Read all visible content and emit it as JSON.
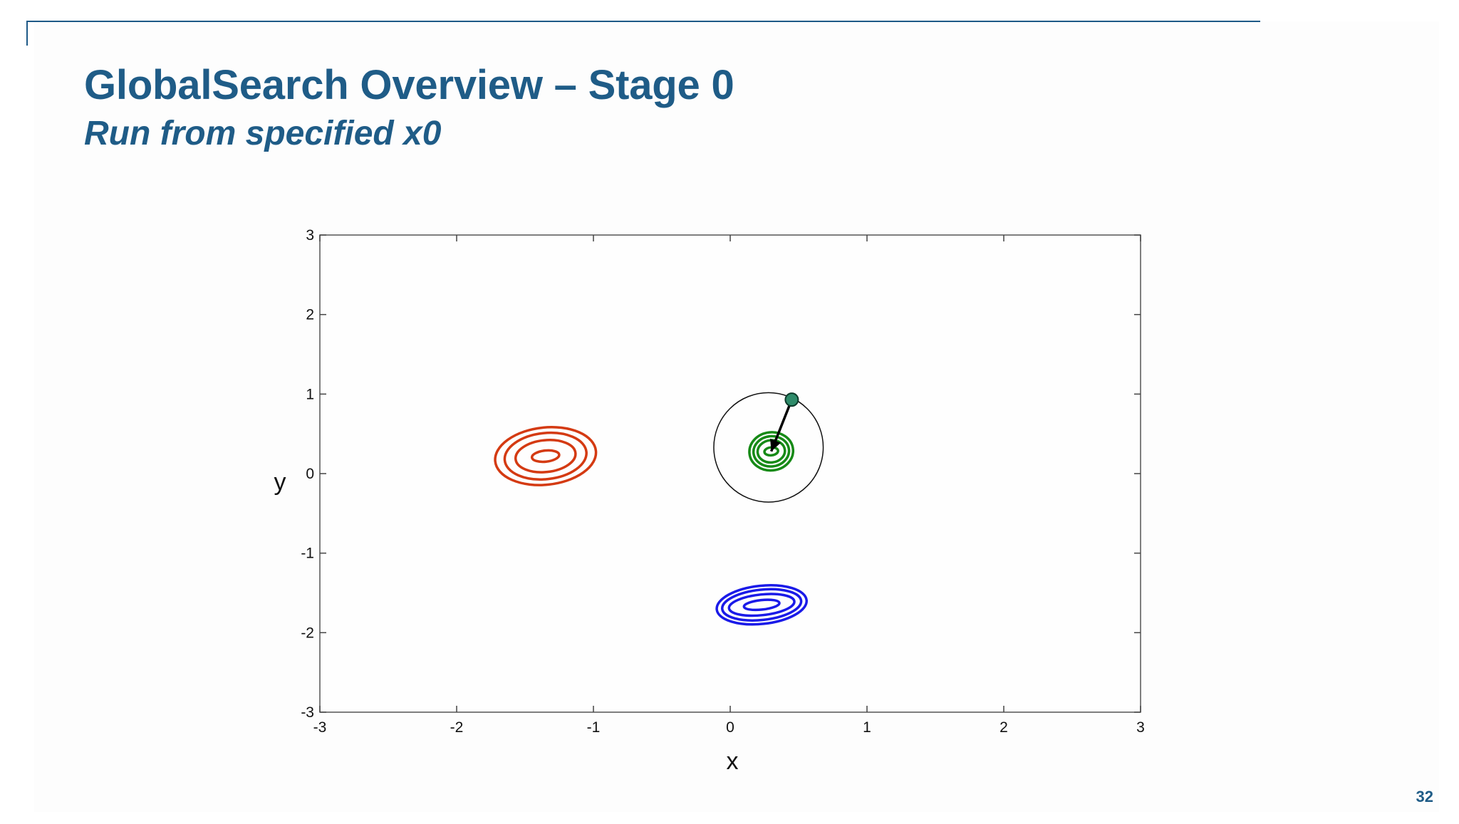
{
  "slide": {
    "title": "GlobalSearch Overview – Stage 0",
    "subtitle": "Run from specified x0",
    "page_number": "32",
    "accent_color": "#1f5c87"
  },
  "chart_data": {
    "type": "contour",
    "title": "",
    "xlabel": "x",
    "ylabel": "y",
    "xlim": [
      -3,
      3
    ],
    "ylim": [
      -3,
      3
    ],
    "xticks": [
      -3,
      -2,
      -1,
      0,
      1,
      2,
      3
    ],
    "yticks": [
      3,
      2,
      1,
      0,
      -1,
      -2,
      -3
    ],
    "grid": false,
    "contour_groups": [
      {
        "color": "#d43a12",
        "center": [
          -1.35,
          0.22
        ],
        "rings": [
          {
            "rx": 0.1,
            "ry": 0.07
          },
          {
            "rx": 0.22,
            "ry": 0.2
          },
          {
            "rx": 0.3,
            "ry": 0.29
          },
          {
            "rx": 0.37,
            "ry": 0.36
          }
        ]
      },
      {
        "color": "#168a16",
        "center": [
          0.3,
          0.28
        ],
        "rings": [
          {
            "rx": 0.05,
            "ry": 0.05
          },
          {
            "rx": 0.1,
            "ry": 0.14
          },
          {
            "rx": 0.13,
            "ry": 0.19
          },
          {
            "rx": 0.16,
            "ry": 0.24
          }
        ]
      },
      {
        "color": "#1a1ae8",
        "center": [
          0.23,
          -1.65
        ],
        "rings": [
          {
            "rx": 0.13,
            "ry": 0.06
          },
          {
            "rx": 0.24,
            "ry": 0.13
          },
          {
            "rx": 0.29,
            "ry": 0.19
          },
          {
            "rx": 0.33,
            "ry": 0.24
          }
        ]
      }
    ],
    "basin_circle": {
      "center": [
        0.28,
        0.33
      ],
      "radius": 0.4,
      "color": "#111111"
    },
    "start_point": {
      "x": 0.45,
      "y": 0.93,
      "color": "#2e8b6a"
    },
    "arrow": {
      "from": [
        0.45,
        0.93
      ],
      "to": [
        0.3,
        0.28
      ],
      "color": "#000000"
    }
  }
}
